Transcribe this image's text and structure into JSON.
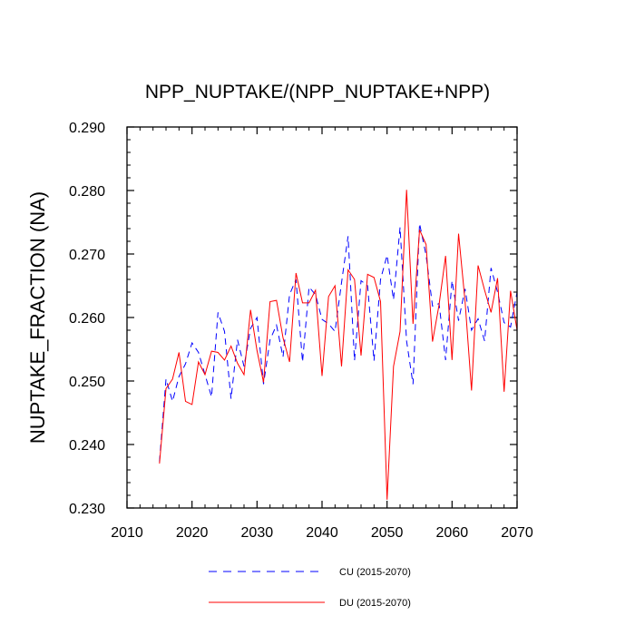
{
  "chart_data": {
    "type": "line",
    "title": "NPP_NUPTAKE/(NPP_NUPTAKE+NPP)",
    "xlabel": "",
    "ylabel": "NUPTAKE_FRACTION  (NA)",
    "xlim": [
      2010,
      2070
    ],
    "ylim": [
      0.23,
      0.29
    ],
    "xticks": [
      "2010",
      "2020",
      "2030",
      "2040",
      "2050",
      "2060",
      "2070"
    ],
    "yticks": [
      "0.230",
      "0.240",
      "0.250",
      "0.260",
      "0.270",
      "0.280",
      "0.290"
    ],
    "x": [
      2015,
      2016,
      2017,
      2018,
      2019,
      2020,
      2021,
      2022,
      2023,
      2024,
      2025,
      2026,
      2027,
      2028,
      2029,
      2030,
      2031,
      2032,
      2033,
      2034,
      2035,
      2036,
      2037,
      2038,
      2039,
      2040,
      2041,
      2042,
      2043,
      2044,
      2045,
      2046,
      2047,
      2048,
      2049,
      2050,
      2051,
      2052,
      2053,
      2054,
      2055,
      2056,
      2057,
      2058,
      2059,
      2060,
      2061,
      2062,
      2063,
      2064,
      2065,
      2066,
      2067,
      2068,
      2069,
      2070
    ],
    "series": [
      {
        "name": "CU (2015-2070)",
        "color": "#0000ff",
        "style": "dashed",
        "values": [
          0.2373,
          0.2503,
          0.2468,
          0.2507,
          0.2527,
          0.256,
          0.2545,
          0.251,
          0.2475,
          0.2608,
          0.2578,
          0.2472,
          0.2565,
          0.2523,
          0.2583,
          0.26,
          0.2495,
          0.2565,
          0.2588,
          0.2538,
          0.2636,
          0.266,
          0.253,
          0.2648,
          0.2636,
          0.2597,
          0.259,
          0.2578,
          0.2655,
          0.2728,
          0.2532,
          0.2658,
          0.265,
          0.2532,
          0.266,
          0.2698,
          0.2628,
          0.2742,
          0.2563,
          0.2495,
          0.2748,
          0.2698,
          0.2618,
          0.2622,
          0.2533,
          0.2658,
          0.2595,
          0.2645,
          0.258,
          0.2598,
          0.2563,
          0.2678,
          0.264,
          0.2592,
          0.2585,
          0.264
        ]
      },
      {
        "name": "DU (2015-2070)",
        "color": "#ff0000",
        "style": "solid",
        "values": [
          0.237,
          0.2488,
          0.2503,
          0.2545,
          0.2468,
          0.2463,
          0.253,
          0.251,
          0.2547,
          0.2545,
          0.2533,
          0.2555,
          0.2528,
          0.251,
          0.2612,
          0.2548,
          0.2498,
          0.2625,
          0.2627,
          0.2568,
          0.253,
          0.267,
          0.2623,
          0.2623,
          0.2643,
          0.2508,
          0.2633,
          0.265,
          0.2523,
          0.2675,
          0.266,
          0.254,
          0.2668,
          0.2663,
          0.2625,
          0.2313,
          0.2523,
          0.2578,
          0.2801,
          0.259,
          0.2738,
          0.2715,
          0.2562,
          0.262,
          0.2697,
          0.2533,
          0.2732,
          0.2625,
          0.2485,
          0.2682,
          0.2643,
          0.2608,
          0.2662,
          0.2483,
          0.2642,
          0.258
        ]
      }
    ]
  }
}
